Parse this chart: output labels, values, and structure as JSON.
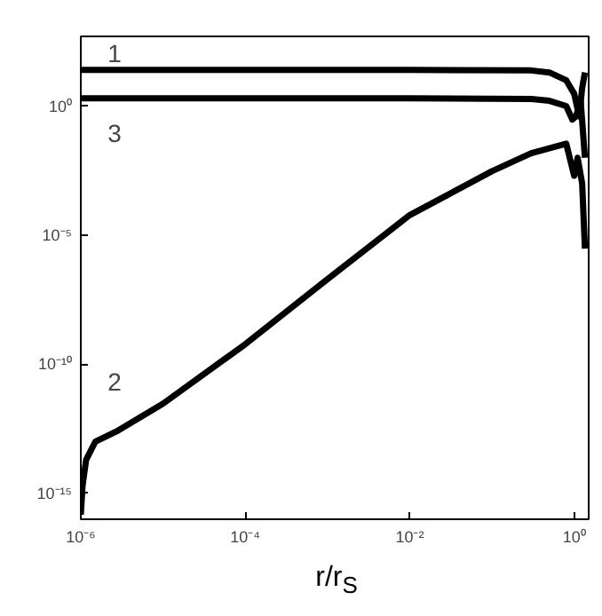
{
  "chart_data": {
    "type": "line",
    "xlabel": "r/r$_{S}$",
    "log": "xy",
    "grid": false,
    "marker": "none",
    "line_style": "solid",
    "xlim": [
      1e-06,
      1.5
    ],
    "ylim": [
      1e-16,
      500
    ],
    "xticks": [
      {
        "value": 1e-06,
        "label": "10⁻⁶"
      },
      {
        "value": 0.0001,
        "label": "10⁻⁴"
      },
      {
        "value": 0.01,
        "label": "10⁻²"
      },
      {
        "value": 1,
        "label": "10⁰"
      }
    ],
    "yticks": [
      {
        "value": 1e-15,
        "label": "10⁻¹⁵"
      },
      {
        "value": 1e-10,
        "label": "10⁻¹⁰"
      },
      {
        "value": 1e-05,
        "label": "10⁻⁵"
      },
      {
        "value": 1,
        "label": "10⁰"
      }
    ],
    "series": [
      {
        "color": "#000000",
        "x": [
          1e-06,
          0.0001,
          0.01,
          0.3,
          0.5,
          0.8,
          1.0,
          1.15,
          1.25,
          1.35
        ],
        "values": [
          25,
          25,
          25,
          24,
          20,
          10,
          3,
          0.4,
          5,
          20
        ]
      },
      {
        "color": "#000000",
        "x": [
          1e-06,
          0.0001,
          0.01,
          0.3,
          0.5,
          0.8,
          0.95,
          1.05,
          1.2,
          1.35
        ],
        "values": [
          2,
          2,
          2,
          1.9,
          1.6,
          1,
          0.3,
          0.4,
          1.5,
          0.01
        ]
      },
      {
        "color": "#000000",
        "x": [
          1e-06,
          1.05e-06,
          1.16e-06,
          1.5e-06,
          2.7e-06,
          1e-05,
          0.0001,
          0.001,
          0.01,
          0.1,
          0.3,
          0.8,
          1.0,
          1.1,
          1.25,
          1.35
        ],
        "values": [
          1.5e-16,
          2e-15,
          2e-14,
          1e-13,
          2.5e-13,
          3e-12,
          6e-10,
          2e-07,
          6e-05,
          0.003,
          0.015,
          0.035,
          0.002,
          0.01,
          0.001,
          3e-06
        ]
      }
    ],
    "annotations": [
      "1",
      "3",
      "2"
    ]
  }
}
